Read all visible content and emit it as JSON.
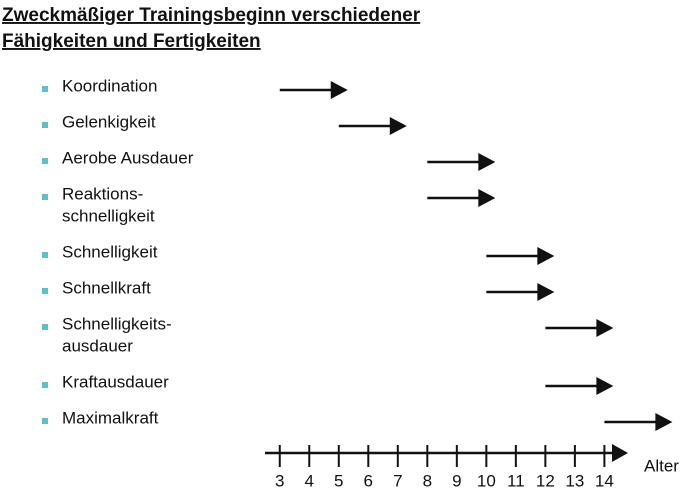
{
  "chart_data": {
    "type": "arrow",
    "title": [
      "Zweckmäßiger Trainingsbeginn verschiedener",
      "Fähigkeiten und Fertigkeiten"
    ],
    "categories": [
      [
        "Koordination"
      ],
      [
        "Gelenkigkeit"
      ],
      [
        "Aerobe Ausdauer"
      ],
      [
        "Reaktions-",
        "schnelligkeit"
      ],
      [
        "Schnelligkeit"
      ],
      [
        "Schnellkraft"
      ],
      [
        "Schnelligkeits-",
        "ausdauer"
      ],
      [
        "Kraftausdauer"
      ],
      [
        "Maximalkraft"
      ]
    ],
    "values": [
      3,
      5,
      8,
      8,
      10,
      10,
      12,
      12,
      14
    ],
    "color": "#111111",
    "bullet_color": "#5bc0c8",
    "xlabel": "Alter",
    "xlim": [
      2.5,
      14.8
    ],
    "xticks": [
      3,
      4,
      5,
      6,
      7,
      8,
      9,
      10,
      11,
      12,
      13,
      14
    ]
  }
}
